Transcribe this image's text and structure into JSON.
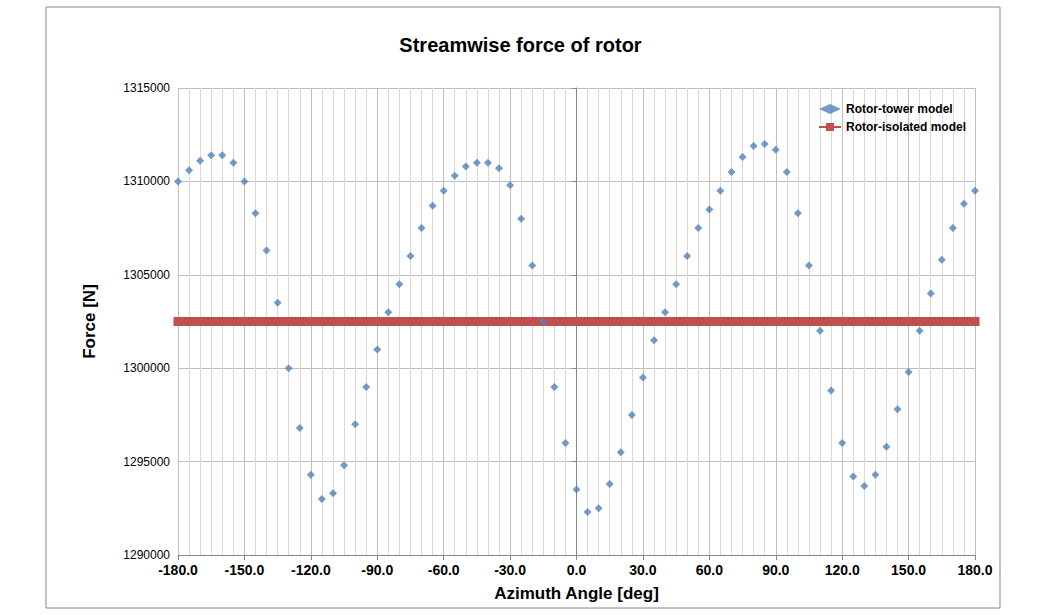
{
  "chart_data": {
    "type": "scatter",
    "title": "Streamwise force of rotor",
    "x_label": "Azimuth Angle [deg]",
    "y_label": "Force [N]",
    "xlim": [
      -180,
      180
    ],
    "xticks": [
      {
        "value": -180,
        "label": "-180.0"
      },
      {
        "value": -150,
        "label": "-150.0"
      },
      {
        "value": -120,
        "label": "-120.0"
      },
      {
        "value": -90,
        "label": "-90.0"
      },
      {
        "value": -60,
        "label": "-60.0"
      },
      {
        "value": -30,
        "label": "-30.0"
      },
      {
        "value": 0,
        "label": "0.0"
      },
      {
        "value": 30,
        "label": "30.0"
      },
      {
        "value": 60,
        "label": "60.0"
      },
      {
        "value": 90,
        "label": "90.0"
      },
      {
        "value": 120,
        "label": "120.0"
      },
      {
        "value": 150,
        "label": "150.0"
      },
      {
        "value": 180,
        "label": "180.0"
      }
    ],
    "ylim": [
      1290000,
      1315000
    ],
    "yticks": [
      1290000,
      1295000,
      1300000,
      1305000,
      1310000,
      1315000
    ],
    "grid": true,
    "legend": "upper right",
    "series": [
      {
        "name": "Rotor-tower model",
        "type": "scatter",
        "marker": "diamond",
        "color": "#4f81bd",
        "x": [
          -180,
          -175,
          -170,
          -165,
          -160,
          -155,
          -150,
          -145,
          -140,
          -135,
          -130,
          -125,
          -120,
          -115,
          -110,
          -105,
          -100,
          -95,
          -90,
          -85,
          -80,
          -75,
          -70,
          -65,
          -60,
          -55,
          -50,
          -45,
          -40,
          -35,
          -30,
          -25,
          -20,
          -15,
          -10,
          -5,
          0,
          5,
          10,
          15,
          20,
          25,
          30,
          35,
          40,
          45,
          50,
          55,
          60,
          65,
          70,
          75,
          80,
          85,
          90,
          95,
          100,
          105,
          110,
          115,
          120,
          125,
          130,
          135,
          140,
          145,
          150,
          155,
          160,
          165,
          170,
          175,
          180
        ],
        "values": [
          1310000,
          1310600,
          1311100,
          1311400,
          1311400,
          1311000,
          1310000,
          1308300,
          1306300,
          1303500,
          1300000,
          1296800,
          1294300,
          1293000,
          1293300,
          1294800,
          1297000,
          1299000,
          1301000,
          1303000,
          1304500,
          1306000,
          1307500,
          1308700,
          1309500,
          1310300,
          1310800,
          1311000,
          1311000,
          1310700,
          1309800,
          1308000,
          1305500,
          1302500,
          1299000,
          1296000,
          1293500,
          1292300,
          1292500,
          1293800,
          1295500,
          1297500,
          1299500,
          1301500,
          1303000,
          1304500,
          1306000,
          1307500,
          1308500,
          1309500,
          1310500,
          1311300,
          1311900,
          1312000,
          1311700,
          1310500,
          1308300,
          1305500,
          1302000,
          1298800,
          1296000,
          1294200,
          1293700,
          1294300,
          1295800,
          1297800,
          1299800,
          1302000,
          1304000,
          1305800,
          1307500,
          1308800,
          1309500
        ]
      },
      {
        "name": "Rotor-isolated model",
        "type": "line",
        "marker": "square",
        "color": "#c0504d",
        "x": [
          -180,
          180
        ],
        "values": [
          1302500,
          1302500
        ]
      }
    ]
  }
}
